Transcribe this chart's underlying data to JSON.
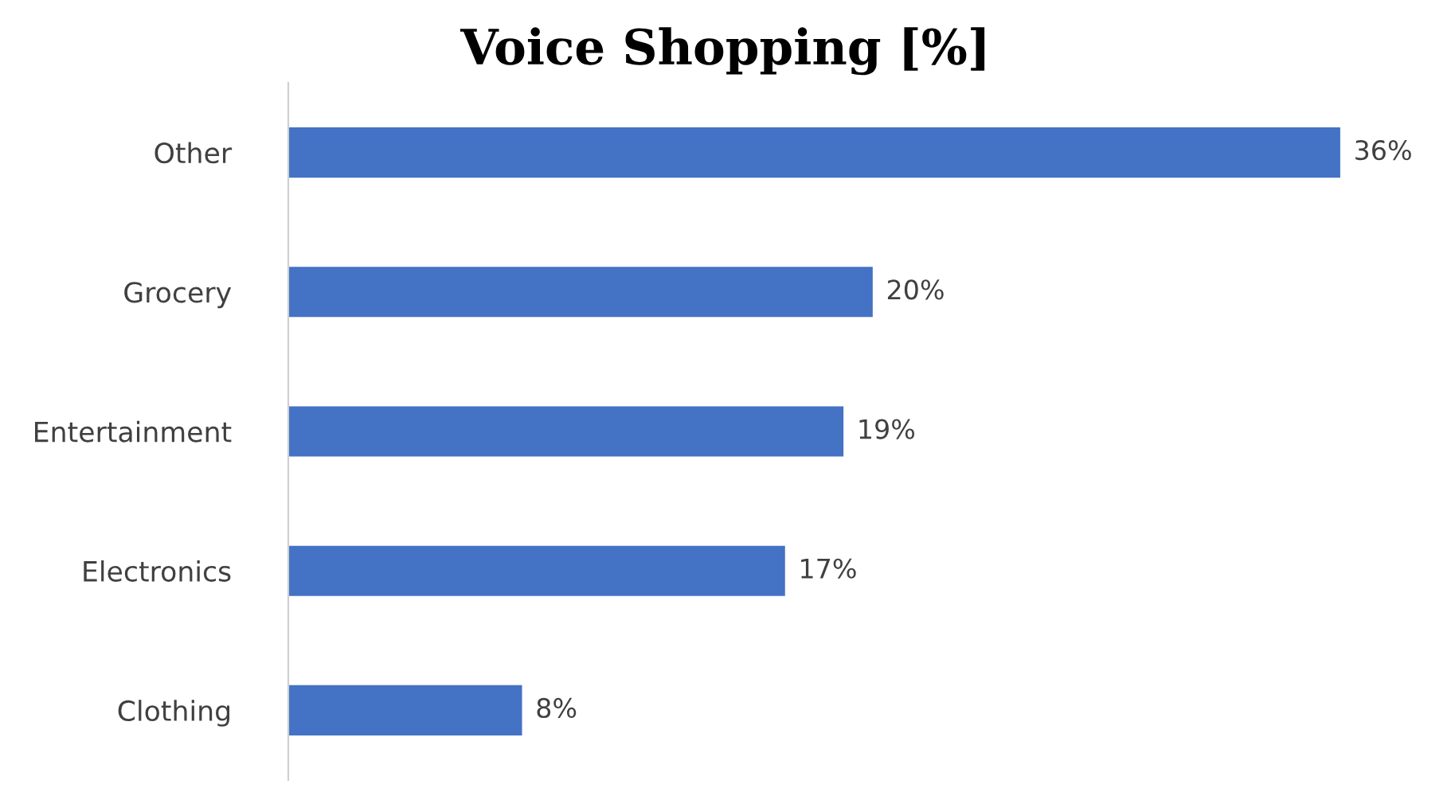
{
  "chart_data": {
    "type": "bar",
    "title": "Voice Shopping [%]",
    "orientation": "horizontal",
    "categories": [
      "Other",
      "Grocery",
      "Entertainment",
      "Electronics",
      "Clothing"
    ],
    "values": [
      36,
      20,
      19,
      17,
      8
    ],
    "color": "#4472c4",
    "value_labels": [
      "36%",
      "20%",
      "19%",
      "17%",
      "8%"
    ],
    "tick_labels": "y",
    "grid": false,
    "legend": false
  }
}
